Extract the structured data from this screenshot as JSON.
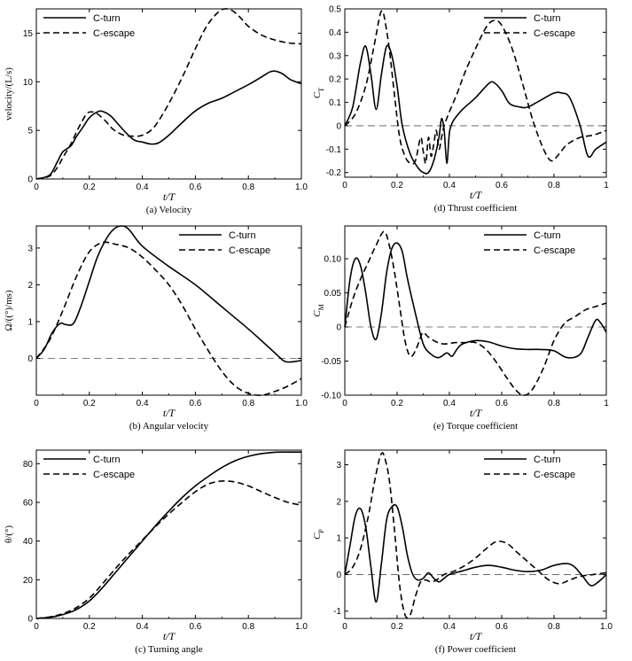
{
  "chart_data": [
    {
      "id": "a",
      "type": "line",
      "caption": "(a) Velocity",
      "xlabel": "t/T",
      "ylabel": "velocity/(L/s)",
      "ylabel_sub": "",
      "xlim": [
        0,
        1
      ],
      "ylim": [
        0,
        17.5
      ],
      "xticks": [
        0,
        0.2,
        0.4,
        0.6,
        0.8,
        1.0
      ],
      "xtick_labels": [
        "0",
        "0.2",
        "0.4",
        "0.6",
        "0.8",
        "1.0"
      ],
      "yticks": [
        0,
        5,
        10,
        15
      ],
      "ytick_labels": [
        "0",
        "5",
        "10",
        "15"
      ],
      "legend": "top-left",
      "zero_line": false,
      "series": [
        {
          "name": "C-turn",
          "style": "solid",
          "x": [
            0,
            0.05,
            0.08,
            0.1,
            0.13,
            0.15,
            0.18,
            0.2,
            0.23,
            0.25,
            0.28,
            0.31,
            0.34,
            0.37,
            0.4,
            0.43,
            0.46,
            0.5,
            0.55,
            0.6,
            0.65,
            0.7,
            0.75,
            0.8,
            0.85,
            0.88,
            0.9,
            0.93,
            0.96,
            1.0
          ],
          "y": [
            0,
            0.4,
            1.8,
            2.8,
            3.4,
            4.3,
            5.5,
            6.3,
            6.9,
            6.95,
            6.5,
            5.6,
            4.7,
            4.0,
            3.8,
            3.6,
            3.7,
            4.5,
            5.8,
            7.0,
            7.8,
            8.3,
            9.0,
            9.7,
            10.5,
            11.0,
            11.1,
            10.8,
            10.2,
            9.8
          ]
        },
        {
          "name": "C-escape",
          "style": "dashed",
          "x": [
            0,
            0.05,
            0.08,
            0.1,
            0.13,
            0.16,
            0.19,
            0.21,
            0.23,
            0.26,
            0.29,
            0.33,
            0.37,
            0.4,
            0.44,
            0.48,
            0.52,
            0.56,
            0.6,
            0.64,
            0.68,
            0.71,
            0.74,
            0.77,
            0.8,
            0.85,
            0.9,
            0.95,
            1.0
          ],
          "y": [
            0,
            0.3,
            1.2,
            2.2,
            3.6,
            5.3,
            6.7,
            6.9,
            6.7,
            6.0,
            5.1,
            4.5,
            4.4,
            4.5,
            5.2,
            6.8,
            8.8,
            11.0,
            13.4,
            15.6,
            17.0,
            17.5,
            17.3,
            16.6,
            15.7,
            14.8,
            14.3,
            14.0,
            13.9
          ]
        }
      ]
    },
    {
      "id": "b",
      "type": "line",
      "caption": "(b) Angular velocity",
      "xlabel": "t/T",
      "ylabel": "Ω/((°)/ms)",
      "ylabel_sub": "",
      "xlim": [
        0,
        1
      ],
      "ylim": [
        -1,
        3.6
      ],
      "xticks": [
        0,
        0.2,
        0.4,
        0.6,
        0.8,
        1.0
      ],
      "xtick_labels": [
        "0",
        "0.2",
        "0.4",
        "0.6",
        "0.8",
        "1.0"
      ],
      "yticks": [
        0,
        1,
        2,
        3
      ],
      "ytick_labels": [
        "0",
        "1",
        "2",
        "3"
      ],
      "legend": "top-right",
      "zero_line": true,
      "series": [
        {
          "name": "C-turn",
          "style": "solid",
          "x": [
            0,
            0.03,
            0.06,
            0.09,
            0.11,
            0.14,
            0.17,
            0.2,
            0.23,
            0.26,
            0.29,
            0.32,
            0.35,
            0.4,
            0.5,
            0.6,
            0.7,
            0.8,
            0.9,
            0.93,
            0.95,
            0.98,
            1.0
          ],
          "y": [
            0,
            0.25,
            0.7,
            0.95,
            0.92,
            0.95,
            1.45,
            2.1,
            2.75,
            3.2,
            3.5,
            3.6,
            3.5,
            3.05,
            2.5,
            2.0,
            1.4,
            0.8,
            0.15,
            -0.05,
            -0.1,
            -0.08,
            -0.05
          ]
        },
        {
          "name": "C-escape",
          "style": "dashed",
          "x": [
            0,
            0.05,
            0.1,
            0.15,
            0.2,
            0.25,
            0.3,
            0.35,
            0.4,
            0.45,
            0.5,
            0.55,
            0.6,
            0.65,
            0.7,
            0.75,
            0.8,
            0.85,
            0.9,
            0.95,
            1.0
          ],
          "y": [
            0,
            0.5,
            1.3,
            2.2,
            2.9,
            3.15,
            3.1,
            3.0,
            2.75,
            2.4,
            2.0,
            1.45,
            0.8,
            0.2,
            -0.35,
            -0.75,
            -0.95,
            -1.0,
            -0.9,
            -0.75,
            -0.55
          ]
        }
      ]
    },
    {
      "id": "c",
      "type": "line",
      "caption": "(c) Turning angle",
      "xlabel": "t/T",
      "ylabel": "θ/(°)",
      "ylabel_sub": "",
      "xlim": [
        0,
        1
      ],
      "ylim": [
        0,
        87
      ],
      "xticks": [
        0,
        0.2,
        0.4,
        0.6,
        0.8,
        1.0
      ],
      "xtick_labels": [
        "0",
        "0.2",
        "0.4",
        "0.6",
        "0.8",
        "1.0"
      ],
      "yticks": [
        0,
        20,
        40,
        60,
        80
      ],
      "ytick_labels": [
        "0",
        "20",
        "40",
        "60",
        "80"
      ],
      "legend": "top-left",
      "zero_line": false,
      "series": [
        {
          "name": "C-turn",
          "style": "solid",
          "x": [
            0,
            0.05,
            0.1,
            0.15,
            0.2,
            0.25,
            0.3,
            0.35,
            0.4,
            0.45,
            0.5,
            0.55,
            0.6,
            0.65,
            0.7,
            0.75,
            0.8,
            0.85,
            0.9,
            0.95,
            1.0
          ],
          "y": [
            0,
            0.6,
            2.0,
            4.5,
            9.0,
            16.0,
            24.0,
            32.0,
            40.0,
            48.0,
            55.5,
            62.5,
            68.5,
            73.5,
            78.0,
            81.5,
            83.8,
            85.2,
            85.9,
            86.0,
            86.0
          ]
        },
        {
          "name": "C-escape",
          "style": "dashed",
          "x": [
            0,
            0.05,
            0.1,
            0.15,
            0.2,
            0.25,
            0.3,
            0.35,
            0.4,
            0.45,
            0.5,
            0.55,
            0.6,
            0.65,
            0.7,
            0.75,
            0.8,
            0.85,
            0.9,
            0.95,
            1.0
          ],
          "y": [
            0,
            0.8,
            2.5,
            5.5,
            10.5,
            18.0,
            26.0,
            33.5,
            40.5,
            47.5,
            54.0,
            60.0,
            65.5,
            69.5,
            71.0,
            70.5,
            68.5,
            65.5,
            62.5,
            60.0,
            58.5
          ]
        }
      ]
    },
    {
      "id": "d",
      "type": "line",
      "caption": "(d) Thrust coefficient",
      "xlabel": "t/T",
      "ylabel": "C",
      "ylabel_sub": "T",
      "xlim": [
        0,
        1
      ],
      "ylim": [
        -0.22,
        0.5
      ],
      "xticks": [
        0,
        0.2,
        0.4,
        0.6,
        0.8,
        1.0
      ],
      "xtick_labels": [
        "0",
        "0.2",
        "0.4",
        "0.6",
        "0.8",
        "1"
      ],
      "yticks": [
        -0.2,
        -0.1,
        0,
        0.1,
        0.2,
        0.3,
        0.4,
        0.5
      ],
      "ytick_labels": [
        "-0.2",
        "-0.1",
        "0",
        "0.1",
        "0.2",
        "0.3",
        "0.4",
        "0.5"
      ],
      "legend": "top-right",
      "zero_line": true,
      "series": [
        {
          "name": "C-turn",
          "style": "solid",
          "x": [
            0,
            0.03,
            0.06,
            0.08,
            0.1,
            0.12,
            0.14,
            0.16,
            0.18,
            0.2,
            0.22,
            0.25,
            0.28,
            0.3,
            0.32,
            0.34,
            0.36,
            0.37,
            0.38,
            0.39,
            0.4,
            0.41,
            0.42,
            0.45,
            0.5,
            0.55,
            0.57,
            0.6,
            0.63,
            0.67,
            0.7,
            0.75,
            0.8,
            0.83,
            0.86,
            0.9,
            0.93,
            0.96,
            1.0
          ],
          "y": [
            0,
            0.08,
            0.27,
            0.34,
            0.22,
            0.07,
            0.22,
            0.34,
            0.3,
            0.17,
            0.0,
            -0.12,
            -0.18,
            -0.2,
            -0.2,
            -0.15,
            -0.05,
            0.03,
            -0.02,
            -0.16,
            -0.03,
            0.01,
            0.03,
            0.07,
            0.12,
            0.18,
            0.185,
            0.15,
            0.095,
            0.08,
            0.08,
            0.11,
            0.14,
            0.14,
            0.12,
            0.0,
            -0.13,
            -0.1,
            -0.07
          ]
        },
        {
          "name": "C-escape",
          "style": "dashed",
          "x": [
            0,
            0.04,
            0.08,
            0.11,
            0.13,
            0.14,
            0.15,
            0.17,
            0.19,
            0.21,
            0.23,
            0.25,
            0.27,
            0.29,
            0.3,
            0.31,
            0.32,
            0.33,
            0.34,
            0.35,
            0.36,
            0.37,
            0.38,
            0.4,
            0.43,
            0.46,
            0.5,
            0.54,
            0.57,
            0.6,
            0.64,
            0.68,
            0.72,
            0.76,
            0.79,
            0.82,
            0.85,
            0.9,
            0.95,
            1.0
          ],
          "y": [
            0,
            0.05,
            0.17,
            0.33,
            0.45,
            0.49,
            0.47,
            0.33,
            0.13,
            -0.05,
            -0.13,
            -0.16,
            -0.15,
            -0.05,
            -0.11,
            -0.16,
            -0.05,
            -0.13,
            -0.08,
            -0.02,
            -0.1,
            -0.05,
            0.0,
            0.06,
            0.14,
            0.23,
            0.33,
            0.42,
            0.45,
            0.43,
            0.33,
            0.18,
            0.02,
            -0.1,
            -0.15,
            -0.12,
            -0.08,
            -0.05,
            -0.04,
            -0.02
          ]
        }
      ]
    },
    {
      "id": "e",
      "type": "line",
      "caption": "(e) Torque coefficient",
      "xlabel": "t/T",
      "ylabel": "C",
      "ylabel_sub": "M",
      "xlim": [
        0,
        1
      ],
      "ylim": [
        -0.1,
        0.148
      ],
      "xticks": [
        0,
        0.2,
        0.4,
        0.6,
        0.8,
        1.0
      ],
      "xtick_labels": [
        "0",
        "0.2",
        "0.4",
        "0.6",
        "0.8",
        "1"
      ],
      "yticks": [
        -0.1,
        -0.05,
        0,
        0.05,
        0.1
      ],
      "ytick_labels": [
        "-0.10",
        "-0.05",
        "0",
        "0.05",
        "0.10"
      ],
      "legend": "top-right",
      "zero_line": true,
      "series": [
        {
          "name": "C-turn",
          "style": "solid",
          "x": [
            0,
            0.02,
            0.04,
            0.06,
            0.08,
            0.1,
            0.12,
            0.14,
            0.16,
            0.18,
            0.2,
            0.22,
            0.24,
            0.27,
            0.3,
            0.33,
            0.36,
            0.39,
            0.41,
            0.43,
            0.45,
            0.5,
            0.55,
            0.6,
            0.65,
            0.7,
            0.75,
            0.8,
            0.85,
            0.9,
            0.93,
            0.96,
            0.98,
            1.0
          ],
          "y": [
            0,
            0.07,
            0.1,
            0.09,
            0.05,
            0.0,
            -0.018,
            0.02,
            0.08,
            0.115,
            0.123,
            0.11,
            0.07,
            0.02,
            -0.025,
            -0.04,
            -0.045,
            -0.038,
            -0.043,
            -0.032,
            -0.025,
            -0.02,
            -0.022,
            -0.028,
            -0.032,
            -0.033,
            -0.033,
            -0.035,
            -0.045,
            -0.04,
            -0.015,
            0.01,
            0.005,
            -0.008
          ]
        },
        {
          "name": "C-escape",
          "style": "dashed",
          "x": [
            0,
            0.03,
            0.06,
            0.09,
            0.12,
            0.15,
            0.17,
            0.19,
            0.21,
            0.23,
            0.25,
            0.27,
            0.29,
            0.3,
            0.32,
            0.35,
            0.38,
            0.42,
            0.46,
            0.5,
            0.54,
            0.58,
            0.62,
            0.66,
            0.69,
            0.72,
            0.76,
            0.8,
            0.84,
            0.88,
            0.92,
            0.96,
            1.0
          ],
          "y": [
            0,
            0.04,
            0.07,
            0.095,
            0.12,
            0.14,
            0.12,
            0.08,
            0.03,
            -0.02,
            -0.043,
            -0.035,
            -0.015,
            -0.008,
            -0.015,
            -0.022,
            -0.025,
            -0.023,
            -0.023,
            -0.023,
            -0.033,
            -0.052,
            -0.075,
            -0.095,
            -0.1,
            -0.09,
            -0.06,
            -0.02,
            0.005,
            0.015,
            0.025,
            0.03,
            0.035
          ]
        }
      ]
    },
    {
      "id": "f",
      "type": "line",
      "caption": "(f) Power coefficient",
      "xlabel": "t/T",
      "ylabel": "C",
      "ylabel_sub": "P",
      "xlim": [
        0,
        1
      ],
      "ylim": [
        -1.2,
        3.4
      ],
      "xticks": [
        0,
        0.2,
        0.4,
        0.6,
        0.8,
        1.0
      ],
      "xtick_labels": [
        "0",
        "0.2",
        "0.4",
        "0.6",
        "0.8",
        "1.0"
      ],
      "yticks": [
        -1,
        0,
        1,
        2,
        3
      ],
      "ytick_labels": [
        "-1",
        "0",
        "1",
        "2",
        "3"
      ],
      "legend": "top-right",
      "zero_line": true,
      "series": [
        {
          "name": "C-turn",
          "style": "solid",
          "x": [
            0,
            0.02,
            0.04,
            0.06,
            0.08,
            0.1,
            0.12,
            0.14,
            0.16,
            0.18,
            0.2,
            0.22,
            0.24,
            0.26,
            0.28,
            0.3,
            0.32,
            0.34,
            0.36,
            0.38,
            0.4,
            0.45,
            0.5,
            0.55,
            0.6,
            0.65,
            0.7,
            0.75,
            0.8,
            0.85,
            0.88,
            0.91,
            0.94,
            0.97,
            1.0
          ],
          "y": [
            0,
            0.8,
            1.6,
            1.8,
            1.3,
            0.2,
            -0.75,
            0.3,
            1.5,
            1.85,
            1.85,
            1.3,
            0.5,
            0.0,
            -0.15,
            -0.1,
            0.05,
            -0.1,
            -0.2,
            -0.1,
            0.0,
            0.1,
            0.2,
            0.25,
            0.2,
            0.12,
            0.08,
            0.12,
            0.25,
            0.3,
            0.2,
            -0.05,
            -0.3,
            -0.2,
            0.0
          ]
        },
        {
          "name": "C-escape",
          "style": "dashed",
          "x": [
            0,
            0.03,
            0.06,
            0.09,
            0.11,
            0.13,
            0.14,
            0.15,
            0.17,
            0.19,
            0.21,
            0.23,
            0.25,
            0.27,
            0.29,
            0.31,
            0.33,
            0.35,
            0.38,
            0.42,
            0.46,
            0.5,
            0.54,
            0.58,
            0.62,
            0.66,
            0.7,
            0.74,
            0.78,
            0.82,
            0.86,
            0.9,
            0.95,
            1.0
          ],
          "y": [
            0,
            0.2,
            0.7,
            1.6,
            2.4,
            3.1,
            3.3,
            3.25,
            2.6,
            1.2,
            -0.3,
            -1.1,
            -1.1,
            -0.6,
            -0.2,
            -0.15,
            -0.2,
            -0.15,
            0.0,
            0.1,
            0.25,
            0.45,
            0.7,
            0.9,
            0.85,
            0.6,
            0.35,
            0.1,
            -0.15,
            -0.25,
            -0.15,
            -0.05,
            0.0,
            0.05
          ]
        }
      ]
    }
  ]
}
